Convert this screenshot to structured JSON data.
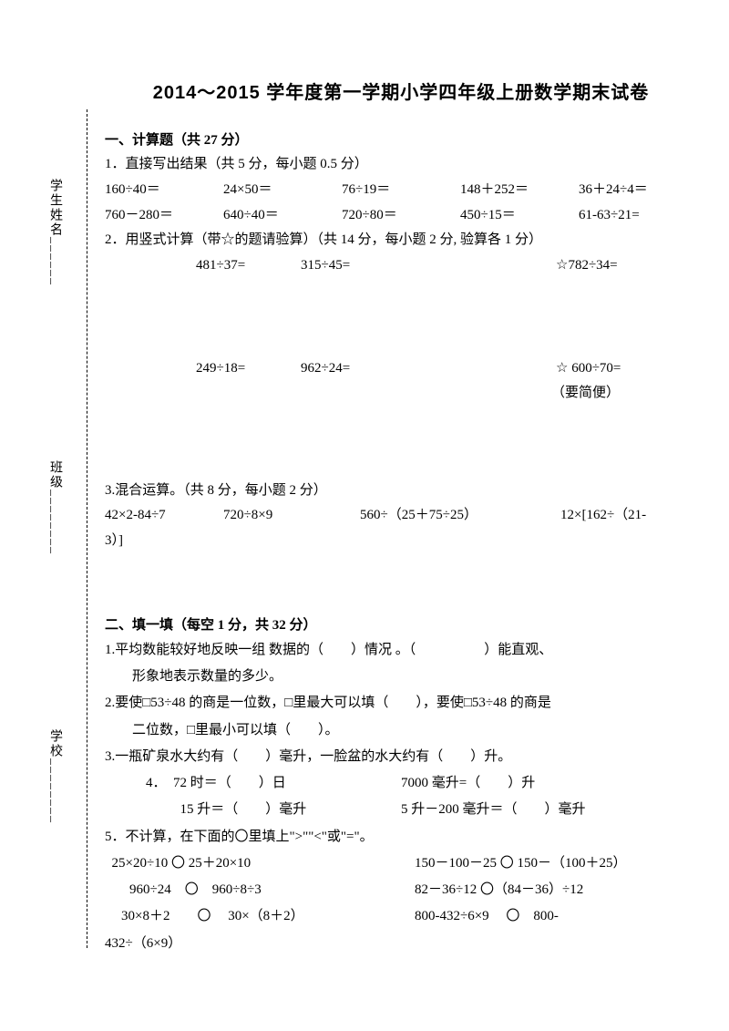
{
  "sidebar": {
    "name": "学生姓名",
    "class": "班级",
    "school": "学校"
  },
  "title": "2014～2015 学年度第一学期小学四年级上册数学期末试卷",
  "s1": {
    "title": "一、计算题（共 27 分）",
    "p1": "1．直接写出结果（共 5 分，每小题 0.5 分）",
    "r1c1": "160÷40＝",
    "r1c2": "24×50＝",
    "r1c3": "76÷19＝",
    "r1c4": "148＋252＝",
    "r1c5": "36＋24÷4＝",
    "r2c1": "760－280＝",
    "r2c2": "640÷40＝",
    "r2c3": "720÷80＝",
    "r2c4": "450÷15＝",
    "r2c5": "61-63÷21=",
    "p2": "2．用竖式计算（带☆的题请验算）（共 14 分，每小题 2 分, 验算各 1 分）",
    "v1c1": "481÷37=",
    "v1c2": "315÷45=",
    "v1c3": "☆782÷34=",
    "v2c1": "249÷18=",
    "v2c2": "962÷24=",
    "v2c3": "☆ 600÷70=",
    "note": "（要简便）",
    "p3": "3.混合运算。（共 8 分，每小题 2 分）",
    "m1": "42×2-84÷7",
    "m2": "720÷8×9",
    "m3": "560÷（25＋75÷25）",
    "m4": "12×[162÷（21-",
    "m4b": "3）]"
  },
  "s2": {
    "title": "二、填一填（每空 1 分，共 32 分）",
    "q1a": "1.平均数能较好地反映一组 数据的（　　）情况 。（　　　　　）能直观、",
    "q1b": "形象地表示数量的多少。",
    "q2a": "2.要使□53÷48 的商是一位数，□里最大可以填（　　），要使□53÷48 的商是",
    "q2b": "二位数，□里最小可以填（　　）。",
    "q3": "3.一瓶矿泉水大约有（　　）毫升，一脸盆的水大约有（　　）升。",
    "q4a1": "72 时＝（　　）日",
    "q4a2": "7000 毫升=（　　）升",
    "q4pre": "4．",
    "q4b1": "15 升＝（　　）毫升",
    "q4b2": "5 升－200 毫升＝（　　）毫升",
    "q5": "5．不计算，在下面的〇里填上\">\"\"<\"或\"=\"。",
    "c1a": "25×20÷10 〇 25＋20×10",
    "c1b": "150－100－25 〇 150－（100＋25）",
    "c2a": "960÷24　〇　960÷8÷3",
    "c2b": "82－36÷12 〇（84－36）÷12",
    "c3a": "30×8＋2　　〇　 30×（8＋2）",
    "c3b": "800-432÷6×9 　〇　800-",
    "c3c": "432÷（6×9）"
  }
}
